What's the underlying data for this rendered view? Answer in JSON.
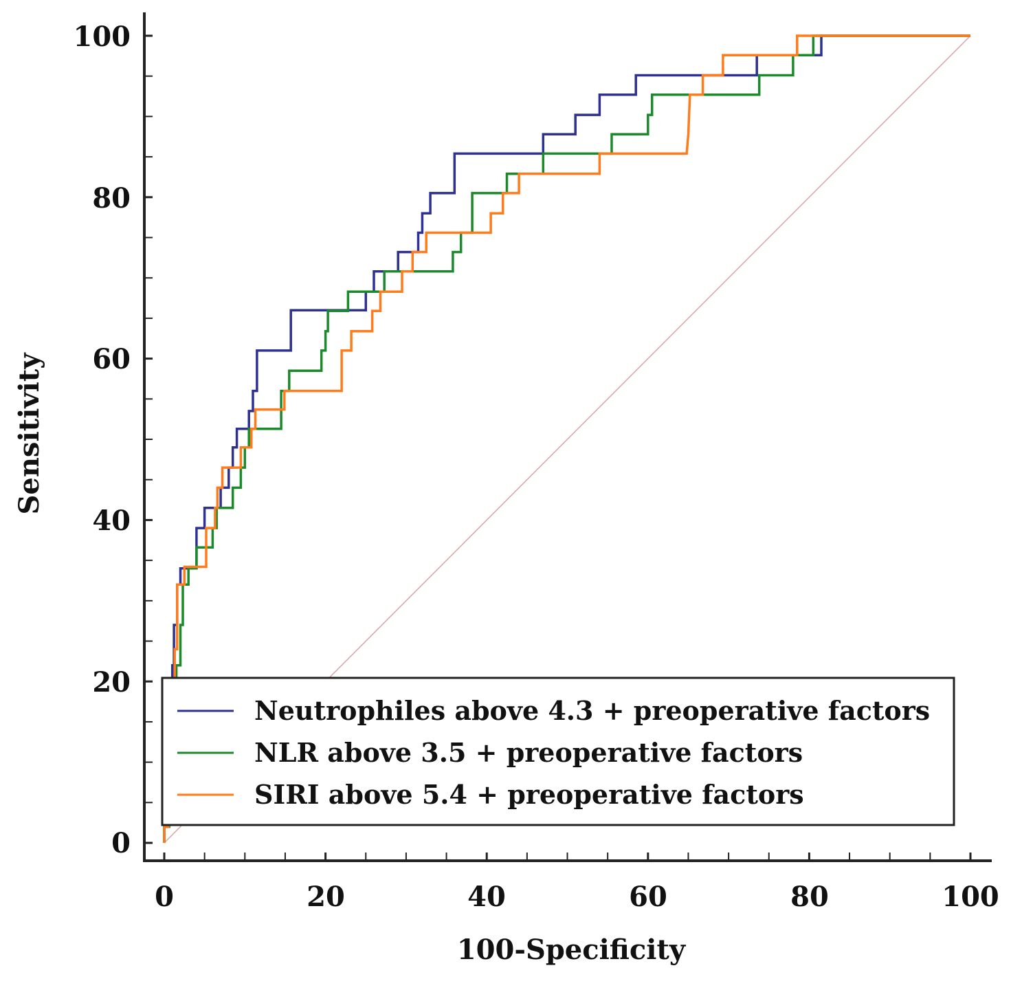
{
  "chart_data": {
    "type": "line",
    "xlabel": "100-Specificity",
    "ylabel": "Sensitivity",
    "xlim": [
      0,
      100
    ],
    "ylim": [
      0,
      100
    ],
    "x_ticks": [
      "0",
      "20",
      "40",
      "60",
      "80",
      "100"
    ],
    "y_ticks": [
      "0",
      "20",
      "40",
      "60",
      "80",
      "100"
    ],
    "grid": false,
    "legend_position": "bottom-right",
    "reference_line": {
      "from": [
        0,
        0
      ],
      "to": [
        100,
        100
      ],
      "color": "#d8a4a8"
    },
    "series": [
      {
        "name": "Neutrophiles above 4.3 + preoperative factors",
        "color": "#2e3192",
        "points": [
          [
            0,
            0
          ],
          [
            0,
            2
          ],
          [
            0.6,
            2
          ],
          [
            0.6,
            7
          ],
          [
            0.8,
            7
          ],
          [
            0.8,
            15
          ],
          [
            1,
            15
          ],
          [
            1,
            22
          ],
          [
            1.2,
            22
          ],
          [
            1.2,
            27
          ],
          [
            1.6,
            27
          ],
          [
            1.6,
            32
          ],
          [
            2,
            32
          ],
          [
            2,
            34
          ],
          [
            4,
            34
          ],
          [
            4,
            39
          ],
          [
            5,
            39
          ],
          [
            5,
            41.5
          ],
          [
            7,
            41.5
          ],
          [
            7,
            44
          ],
          [
            8,
            44
          ],
          [
            8,
            46.5
          ],
          [
            8.5,
            46.5
          ],
          [
            8.5,
            49
          ],
          [
            9,
            49
          ],
          [
            9,
            51.3
          ],
          [
            10.5,
            51.3
          ],
          [
            10.5,
            53.5
          ],
          [
            11,
            53.5
          ],
          [
            11,
            56
          ],
          [
            11.5,
            56
          ],
          [
            11.5,
            61
          ],
          [
            15.7,
            61
          ],
          [
            15.7,
            66
          ],
          [
            25,
            66
          ],
          [
            25,
            68.3
          ],
          [
            26,
            68.3
          ],
          [
            26,
            70.8
          ],
          [
            29,
            70.8
          ],
          [
            29,
            73.2
          ],
          [
            31.5,
            73.2
          ],
          [
            31.5,
            75.6
          ],
          [
            32,
            75.6
          ],
          [
            32,
            78
          ],
          [
            33,
            78
          ],
          [
            33,
            80.5
          ],
          [
            36,
            80.5
          ],
          [
            36,
            85.4
          ],
          [
            47,
            85.4
          ],
          [
            47,
            87.8
          ],
          [
            51,
            87.8
          ],
          [
            51,
            90.2
          ],
          [
            54,
            90.2
          ],
          [
            54,
            92.7
          ],
          [
            58.5,
            92.7
          ],
          [
            58.5,
            95.1
          ],
          [
            73.5,
            95.1
          ],
          [
            73.5,
            97.6
          ],
          [
            81.5,
            97.6
          ],
          [
            81.5,
            100
          ],
          [
            100,
            100
          ]
        ]
      },
      {
        "name": "NLR above 3.5 + preoperative factors",
        "color": "#1a8a2a",
        "points": [
          [
            0,
            0
          ],
          [
            0,
            2
          ],
          [
            0.6,
            2
          ],
          [
            0.6,
            10
          ],
          [
            1,
            10
          ],
          [
            1,
            17
          ],
          [
            1.5,
            17
          ],
          [
            1.5,
            22
          ],
          [
            2,
            22
          ],
          [
            2,
            27
          ],
          [
            2.3,
            27
          ],
          [
            2.3,
            32
          ],
          [
            3,
            32
          ],
          [
            3,
            34
          ],
          [
            4,
            34
          ],
          [
            4,
            36.6
          ],
          [
            6,
            36.6
          ],
          [
            6,
            39
          ],
          [
            6.5,
            39
          ],
          [
            6.5,
            41.5
          ],
          [
            8.5,
            41.5
          ],
          [
            8.5,
            44
          ],
          [
            9.5,
            44
          ],
          [
            9.5,
            46.5
          ],
          [
            10,
            46.5
          ],
          [
            10,
            49
          ],
          [
            10.5,
            49
          ],
          [
            10.5,
            51.3
          ],
          [
            14.5,
            51.3
          ],
          [
            14.5,
            56
          ],
          [
            15.5,
            56
          ],
          [
            15.5,
            58.5
          ],
          [
            19.5,
            58.5
          ],
          [
            19.5,
            61
          ],
          [
            20,
            61
          ],
          [
            20,
            63.4
          ],
          [
            20.3,
            63.4
          ],
          [
            20.3,
            65.9
          ],
          [
            22.8,
            65.9
          ],
          [
            22.8,
            68.3
          ],
          [
            27.3,
            68.3
          ],
          [
            27.3,
            70.8
          ],
          [
            35.8,
            70.8
          ],
          [
            35.8,
            73.2
          ],
          [
            36.8,
            73.2
          ],
          [
            36.8,
            75.6
          ],
          [
            38.2,
            75.6
          ],
          [
            38.2,
            80.5
          ],
          [
            42.5,
            80.5
          ],
          [
            42.5,
            82.9
          ],
          [
            47,
            82.9
          ],
          [
            47,
            85.4
          ],
          [
            55.5,
            85.4
          ],
          [
            55.5,
            87.8
          ],
          [
            60,
            87.8
          ],
          [
            60,
            90.2
          ],
          [
            60.5,
            90.2
          ],
          [
            60.5,
            92.7
          ],
          [
            73.8,
            92.7
          ],
          [
            73.8,
            95.1
          ],
          [
            78,
            95.1
          ],
          [
            78,
            97.6
          ],
          [
            80.5,
            97.6
          ],
          [
            80.5,
            100
          ],
          [
            100,
            100
          ]
        ]
      },
      {
        "name": "SIRI above 5.4 + preoperative factors",
        "color": "#ff7b1c",
        "points": [
          [
            0,
            0
          ],
          [
            0,
            2
          ],
          [
            0.5,
            2
          ],
          [
            0.5,
            12
          ],
          [
            1,
            12
          ],
          [
            1,
            19
          ],
          [
            1.3,
            19
          ],
          [
            1.3,
            24
          ],
          [
            1.6,
            24
          ],
          [
            1.6,
            32
          ],
          [
            2.5,
            32
          ],
          [
            2.5,
            34.2
          ],
          [
            5.2,
            34.2
          ],
          [
            5.2,
            39
          ],
          [
            6.3,
            39
          ],
          [
            6.3,
            41.5
          ],
          [
            6.6,
            41.5
          ],
          [
            6.6,
            44
          ],
          [
            7.2,
            44
          ],
          [
            7.2,
            46.5
          ],
          [
            9.5,
            46.5
          ],
          [
            9.5,
            49
          ],
          [
            10.8,
            49
          ],
          [
            10.8,
            51.3
          ],
          [
            11.3,
            51.3
          ],
          [
            11.3,
            53.7
          ],
          [
            14.9,
            53.7
          ],
          [
            14.9,
            56
          ],
          [
            22,
            56
          ],
          [
            22,
            61
          ],
          [
            23.2,
            61
          ],
          [
            23.2,
            63.4
          ],
          [
            25.8,
            63.4
          ],
          [
            25.8,
            65.9
          ],
          [
            26.8,
            65.9
          ],
          [
            26.8,
            68.3
          ],
          [
            29.5,
            68.3
          ],
          [
            29.5,
            70.8
          ],
          [
            30.8,
            70.8
          ],
          [
            30.8,
            73.2
          ],
          [
            32.5,
            73.2
          ],
          [
            32.5,
            75.6
          ],
          [
            40.5,
            75.6
          ],
          [
            40.5,
            78
          ],
          [
            42,
            78
          ],
          [
            42,
            80.5
          ],
          [
            44,
            80.5
          ],
          [
            44,
            82.9
          ],
          [
            54,
            82.9
          ],
          [
            54,
            85.4
          ],
          [
            64.8,
            85.4
          ],
          [
            65,
            87.8
          ],
          [
            65.2,
            92.7
          ],
          [
            66.8,
            92.7
          ],
          [
            66.8,
            95.1
          ],
          [
            69.3,
            95.1
          ],
          [
            69.3,
            97.6
          ],
          [
            78.5,
            97.6
          ],
          [
            78.5,
            100
          ],
          [
            100,
            100
          ]
        ]
      }
    ]
  }
}
